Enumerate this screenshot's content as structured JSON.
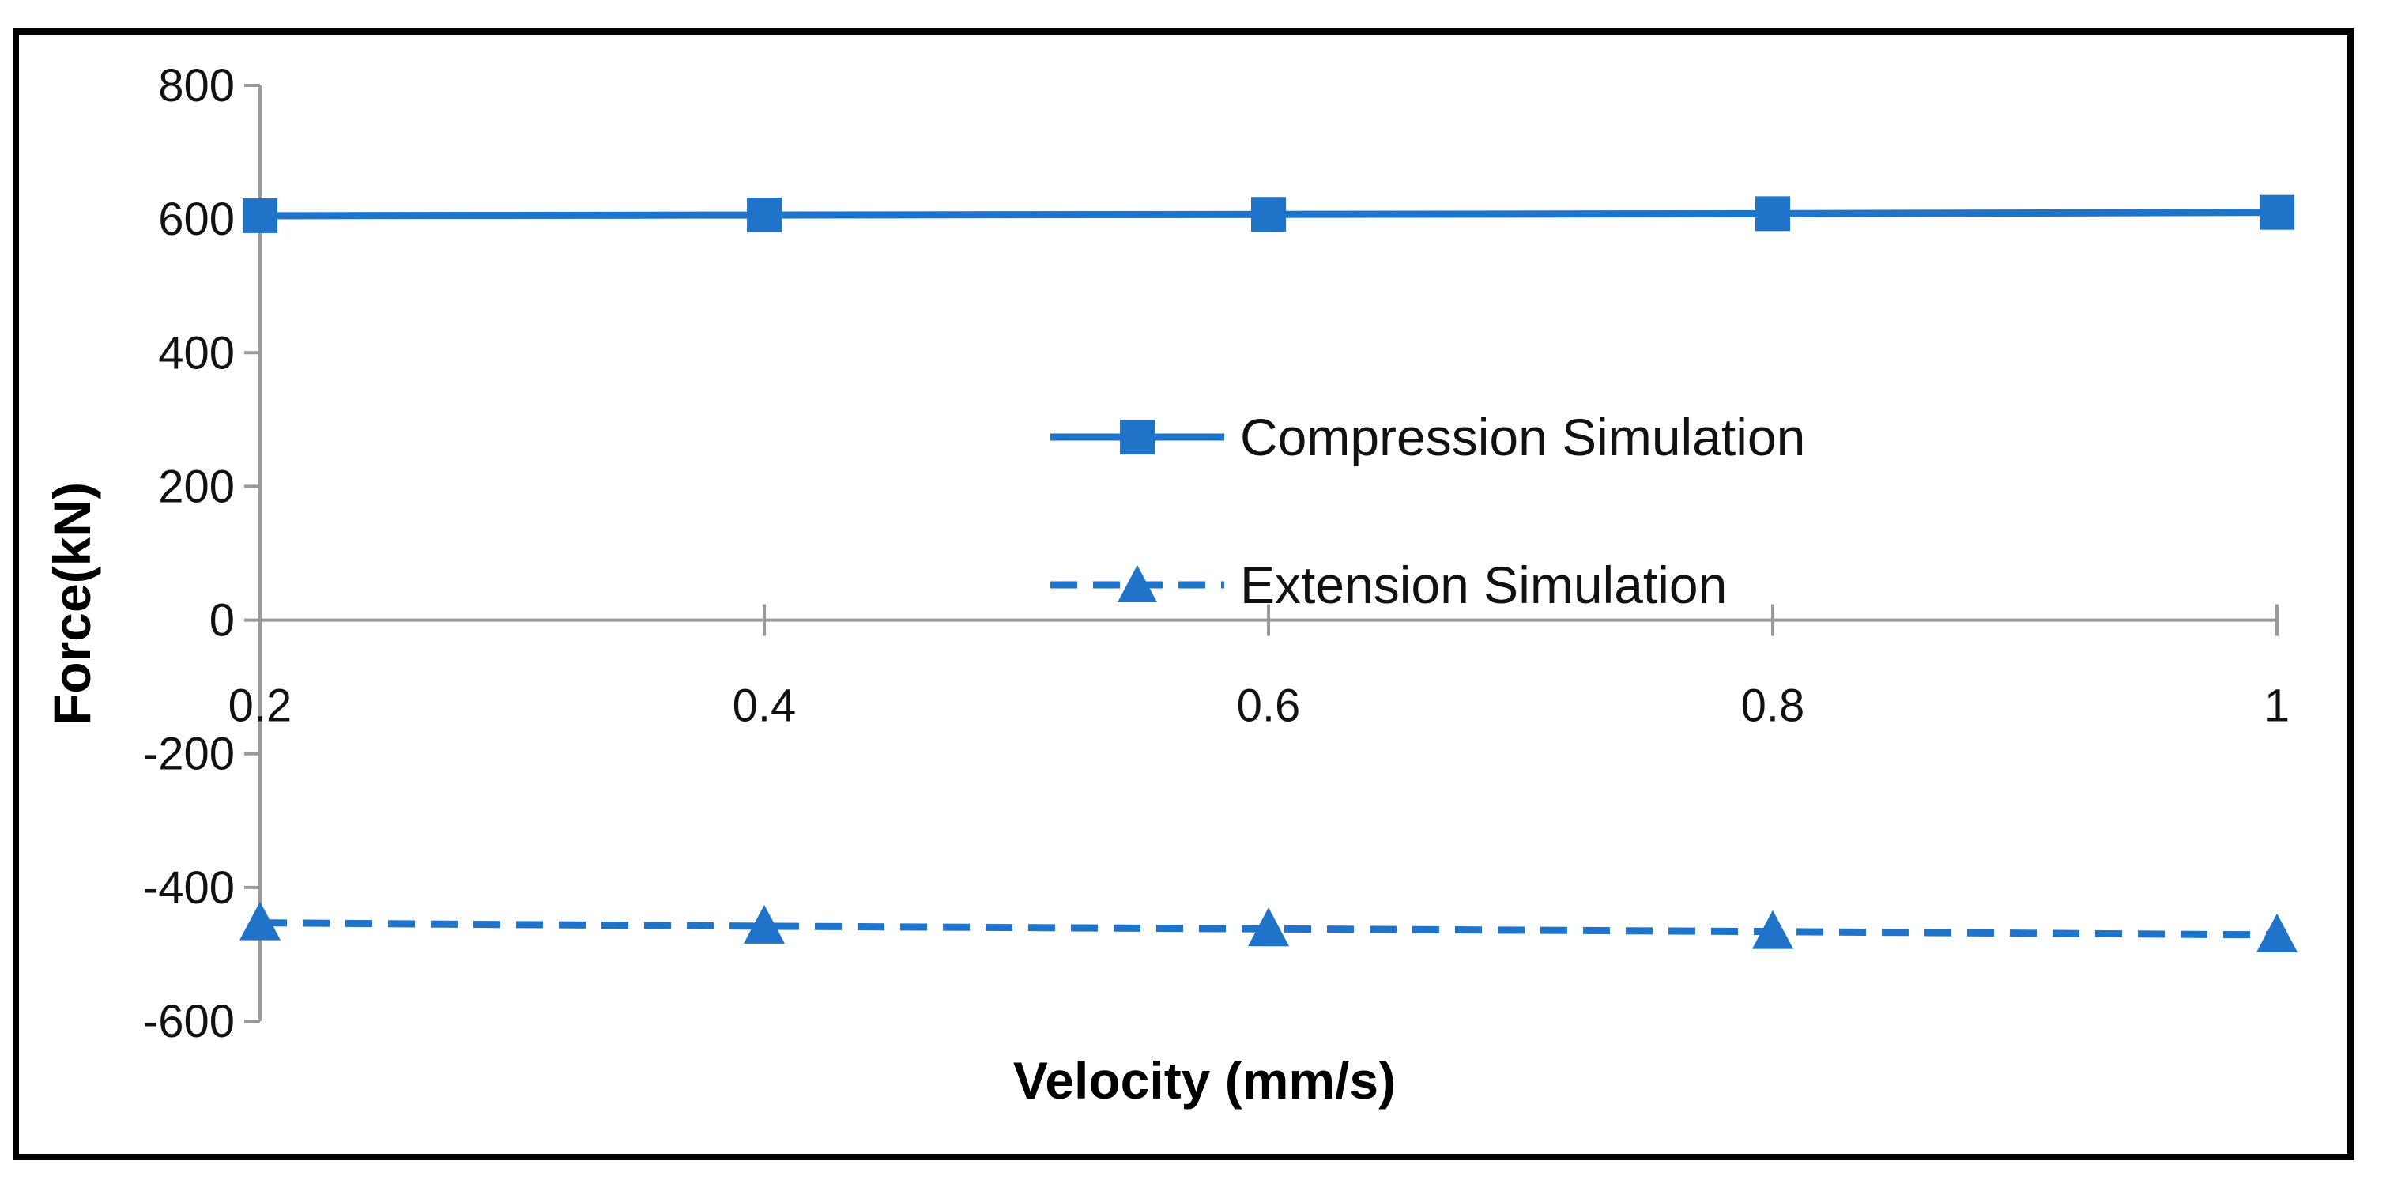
{
  "chart_data": {
    "type": "line",
    "title": "",
    "xlabel": "Velocity (mm/s)",
    "ylabel": "Force(kN)",
    "x": [
      0.2,
      0.4,
      0.6,
      0.8,
      1
    ],
    "x_tick_labels": [
      "0.2",
      "0.4",
      "0.6",
      "0.8",
      "1"
    ],
    "xlim": [
      0.2,
      1
    ],
    "ylim": [
      -600,
      800
    ],
    "y_ticks": [
      800,
      600,
      400,
      200,
      0,
      -200,
      -400,
      -600
    ],
    "y_tick_labels": [
      "800",
      "600",
      "400",
      "200",
      "0",
      "-200",
      "-400",
      "-600"
    ],
    "grid": false,
    "legend_position": "center",
    "series": [
      {
        "name": "Compression Simulation",
        "values": [
          605,
          606,
          607,
          608,
          610
        ],
        "color": "#1f73c8",
        "line_style": "solid",
        "marker": "square"
      },
      {
        "name": "Extension Simulation",
        "values": [
          -453,
          -458,
          -462,
          -466,
          -471
        ],
        "color": "#1f73c8",
        "line_style": "dashed",
        "marker": "triangle"
      }
    ]
  }
}
